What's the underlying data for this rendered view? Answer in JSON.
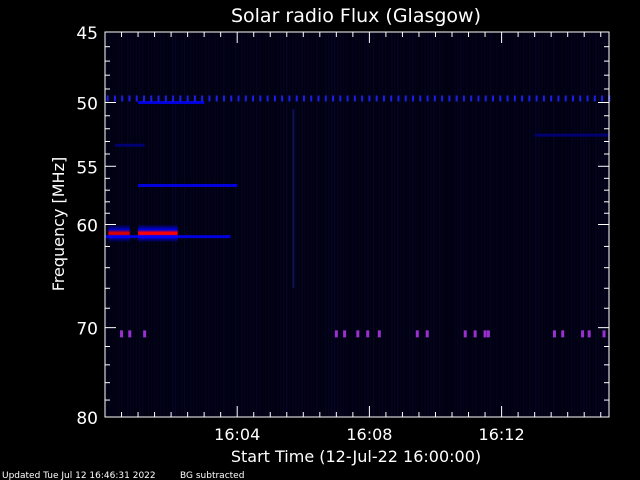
{
  "chart_data": {
    "type": "heatmap",
    "title": "Solar radio Flux (Glasgow)",
    "xlabel": "Start Time (12-Jul-22 16:00:00)",
    "ylabel": "Frequency [MHz]",
    "x_unit": "minutes after 16:00:00",
    "xlim": [
      0,
      15.25
    ],
    "ylim": [
      45,
      80
    ],
    "y_scale": "log",
    "y_reversed": true,
    "x_ticks": [
      {
        "value": 4,
        "label": "16:04"
      },
      {
        "value": 8,
        "label": "16:08"
      },
      {
        "value": 12,
        "label": "16:12"
      }
    ],
    "y_ticks": [
      {
        "value": 45,
        "label": "45"
      },
      {
        "value": 50,
        "label": "50"
      },
      {
        "value": 55,
        "label": "55"
      },
      {
        "value": 60,
        "label": "60"
      },
      {
        "value": 70,
        "label": "70"
      },
      {
        "value": 80,
        "label": "80"
      }
    ],
    "y_minor_ticks": [
      46,
      47,
      48,
      49,
      51,
      52,
      53,
      54,
      56,
      57,
      58,
      59,
      62,
      64,
      66,
      68,
      72,
      74,
      76,
      78
    ],
    "grid": false,
    "colormap": [
      "#000010",
      "#000080",
      "#0000ff",
      "#8000c0",
      "#ff0000"
    ],
    "features": [
      {
        "kind": "burst",
        "freq": 60.8,
        "t_start": 1.0,
        "t_end": 2.2,
        "intensity": 1.0
      },
      {
        "kind": "burst",
        "freq": 60.8,
        "t_start": 0.1,
        "t_end": 0.75,
        "intensity": 0.85
      },
      {
        "kind": "band",
        "freq": 61.1,
        "t_start": 0.0,
        "t_end": 3.8,
        "intensity": 0.45
      },
      {
        "kind": "band",
        "freq": 50.0,
        "t_start": 1.0,
        "t_end": 3.0,
        "intensity": 0.5
      },
      {
        "kind": "band",
        "freq": 56.6,
        "t_start": 1.0,
        "t_end": 4.0,
        "intensity": 0.35
      },
      {
        "kind": "band",
        "freq": 53.3,
        "t_start": 0.3,
        "t_end": 1.2,
        "intensity": 0.25
      },
      {
        "kind": "band",
        "freq": 52.5,
        "t_start": 13.0,
        "t_end": 15.25,
        "intensity": 0.2
      },
      {
        "kind": "dotted_line",
        "freq": 49.7,
        "t_start": 0.0,
        "t_end": 15.25,
        "spacing": 0.22,
        "intensity": 0.55
      },
      {
        "kind": "dots",
        "freq": 70.6,
        "times": [
          0.5,
          0.75,
          1.2,
          7.0,
          7.25,
          7.65,
          7.95,
          8.3,
          9.45,
          9.75,
          10.9,
          11.2,
          11.5,
          11.6,
          13.6,
          13.85,
          14.45,
          14.65,
          15.1
        ],
        "intensity": 0.7
      },
      {
        "kind": "vertical_streak",
        "t": 5.7,
        "f_start": 50.5,
        "f_end": 66.0,
        "intensity": 0.35
      }
    ]
  },
  "footer": {
    "updated": "Updated Tue Jul 12 16:46:31 2022",
    "note": "BG subtracted"
  }
}
